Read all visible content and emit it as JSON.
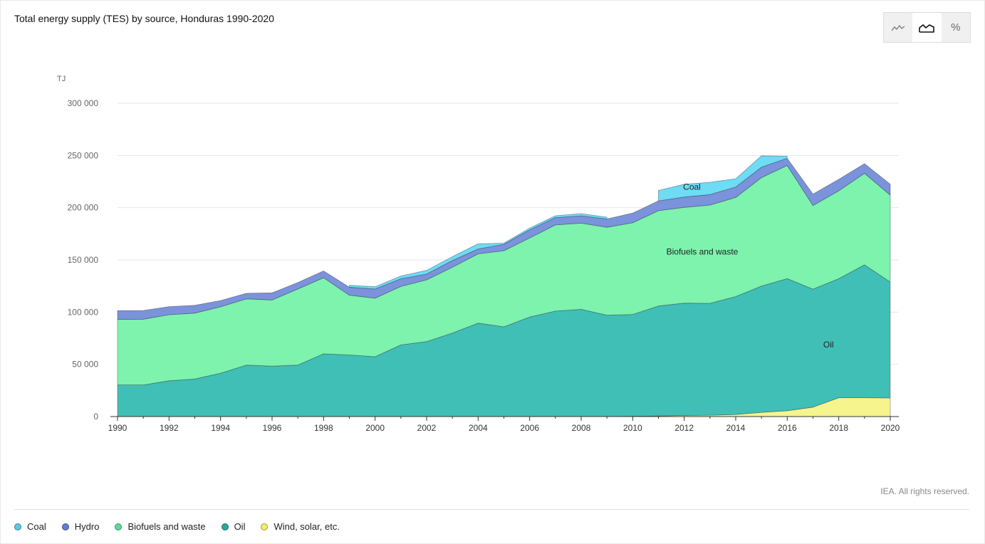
{
  "page": {
    "title": "Total energy supply (TES) by source, Honduras 1990-2020",
    "credit": "IEA. All rights reserved.",
    "view_toggle": [
      {
        "icon": "line-chart-icon",
        "active": false
      },
      {
        "icon": "area-chart-icon",
        "active": true
      },
      {
        "icon": "percent-icon",
        "label": "%",
        "active": false
      }
    ]
  },
  "colors": {
    "coal": "#6edcf5",
    "hydro": "#7b93db",
    "biofuels": "#7df3ad",
    "oil": "#40bfb6",
    "wind": "#f6f48d",
    "grid": "#e6e6e6",
    "axis": "#333333"
  },
  "legend": [
    {
      "label": "Coal",
      "color": "#5cc8e8"
    },
    {
      "label": "Hydro",
      "color": "#5f7fcf"
    },
    {
      "label": "Biofuels and waste",
      "color": "#58de95"
    },
    {
      "label": "Oil",
      "color": "#2aa79e"
    },
    {
      "label": "Wind, solar, etc.",
      "color": "#f3ee6a"
    }
  ],
  "chart_data": {
    "type": "area",
    "stacked": true,
    "title": "Total energy supply (TES) by source, Honduras 1990-2020",
    "ylabel": "TJ",
    "xlabel": "",
    "ylim": [
      0,
      300000
    ],
    "yticks": [
      0,
      50000,
      100000,
      150000,
      200000,
      250000,
      300000
    ],
    "ytick_labels": [
      "0",
      "50 000",
      "100 000",
      "150 000",
      "200 000",
      "250 000",
      "300 000"
    ],
    "xtick_labels": [
      "1990",
      "1992",
      "1994",
      "1996",
      "1998",
      "2000",
      "2002",
      "2004",
      "2006",
      "2008",
      "2010",
      "2012",
      "2014",
      "2016",
      "2018",
      "2020"
    ],
    "grid": true,
    "x": [
      1990,
      1991,
      1992,
      1993,
      1994,
      1995,
      1996,
      1997,
      1998,
      1999,
      2000,
      2001,
      2002,
      2003,
      2004,
      2005,
      2006,
      2007,
      2008,
      2009,
      2010,
      2011,
      2012,
      2013,
      2014,
      2015,
      2016,
      2017,
      2018,
      2019,
      2020
    ],
    "series": [
      {
        "name": "Wind, solar, etc.",
        "key": "wind",
        "values": [
          0,
          0,
          0,
          0,
          0,
          0,
          0,
          0,
          0,
          0,
          0,
          0,
          0,
          0,
          0,
          0,
          0,
          0,
          0,
          0,
          300,
          600,
          1000,
          1300,
          2000,
          4000,
          5500,
          9000,
          18000,
          18000,
          17800
        ]
      },
      {
        "name": "Oil",
        "key": "oil",
        "values": [
          30300,
          30300,
          34200,
          35900,
          41500,
          49300,
          48300,
          49300,
          60100,
          59000,
          57300,
          68600,
          71800,
          79900,
          89500,
          85900,
          95300,
          101000,
          102700,
          97000,
          97500,
          105300,
          107600,
          107100,
          112900,
          121000,
          126600,
          113000,
          114000,
          127300,
          111000
        ]
      },
      {
        "name": "Biofuels and waste",
        "key": "biofuels",
        "values": [
          62700,
          62900,
          63300,
          63200,
          63600,
          63400,
          63300,
          72800,
          72800,
          57200,
          56100,
          56000,
          59100,
          63100,
          66300,
          72900,
          75700,
          82500,
          82500,
          84200,
          87700,
          91200,
          91700,
          94100,
          94900,
          103800,
          108300,
          80000,
          84200,
          87600,
          83200
        ]
      },
      {
        "name": "Hydro",
        "key": "hydro",
        "values": [
          8400,
          8400,
          7700,
          7400,
          6000,
          5300,
          6800,
          6300,
          6500,
          7700,
          8700,
          7300,
          5500,
          6400,
          4700,
          6100,
          7800,
          7000,
          7000,
          8000,
          9300,
          9400,
          9900,
          10000,
          10000,
          10000,
          6900,
          11000,
          11000,
          9200,
          10500
        ]
      },
      {
        "name": "Coal",
        "key": "coal",
        "values": [
          null,
          null,
          null,
          null,
          null,
          null,
          null,
          null,
          null,
          1900,
          2200,
          2700,
          3600,
          3700,
          4900,
          1100,
          1700,
          1800,
          2100,
          1700,
          null,
          10000,
          12200,
          11800,
          7900,
          10900,
          2000,
          null,
          null,
          null,
          null
        ]
      }
    ],
    "series_labels": [
      {
        "text": "Coal",
        "x": 2012.3,
        "y": 217000
      },
      {
        "text": "Biofuels and waste",
        "x": 2012.7,
        "y": 155000
      },
      {
        "text": "Oil",
        "x": 2017.6,
        "y": 66000
      }
    ]
  }
}
